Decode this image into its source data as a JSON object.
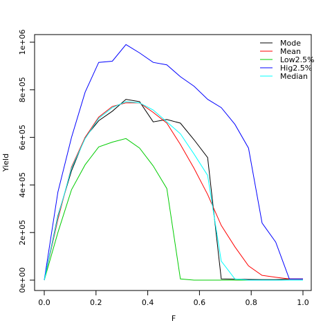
{
  "chart_data": {
    "type": "line",
    "xlabel": "F",
    "ylabel": "Yield",
    "xlim": [
      0,
      1
    ],
    "ylim": [
      0,
      1000000
    ],
    "xticks": [
      0,
      0.2,
      0.4,
      0.6,
      0.8,
      1.0
    ],
    "xtick_labels": [
      "0.0",
      "0.2",
      "0.4",
      "0.6",
      "0.8",
      "1.0"
    ],
    "yticks": [
      0,
      200000,
      400000,
      600000,
      800000,
      1000000
    ],
    "ytick_labels": [
      "0e+00",
      "2e+05",
      "4e+05",
      "6e+05",
      "8e+05",
      "1e+06"
    ],
    "grid": false,
    "legend_position": "top-right",
    "x": [
      0,
      0.0526,
      0.1053,
      0.1579,
      0.2105,
      0.2632,
      0.3158,
      0.3684,
      0.4211,
      0.4737,
      0.5263,
      0.5789,
      0.6316,
      0.6842,
      0.7368,
      0.7895,
      0.8421,
      0.8947,
      0.9474,
      1.0
    ],
    "series": [
      {
        "name": "Mode",
        "color": "#000000",
        "values": [
          0,
          270000,
          460000,
          600000,
          670000,
          710000,
          760000,
          750000,
          665000,
          675000,
          660000,
          590000,
          515000,
          5000,
          4000,
          3000,
          2000,
          2000,
          4000,
          4000
        ]
      },
      {
        "name": "Mean",
        "color": "#ff0000",
        "values": [
          0,
          255000,
          475000,
          600000,
          685000,
          730000,
          745000,
          745000,
          705000,
          660000,
          570000,
          470000,
          360000,
          230000,
          140000,
          60000,
          20000,
          12000,
          5000,
          5000
        ]
      },
      {
        "name": "Low2.5%",
        "color": "#00cc00",
        "values": [
          0,
          200000,
          380000,
          485000,
          560000,
          580000,
          595000,
          555000,
          480000,
          385000,
          5000,
          0,
          0,
          0,
          0,
          0,
          0,
          0,
          0,
          0
        ]
      },
      {
        "name": "Hig2.5%",
        "color": "#0000ff",
        "values": [
          0,
          370000,
          600000,
          790000,
          915000,
          920000,
          990000,
          955000,
          915000,
          905000,
          855000,
          815000,
          760000,
          725000,
          655000,
          555000,
          240000,
          160000,
          5000,
          5000
        ]
      },
      {
        "name": "Median",
        "color": "#00ffff",
        "values": [
          0,
          265000,
          470000,
          595000,
          680000,
          725000,
          750000,
          745000,
          715000,
          665000,
          615000,
          530000,
          440000,
          80000,
          5000,
          0,
          0,
          0,
          0,
          0
        ]
      }
    ]
  }
}
